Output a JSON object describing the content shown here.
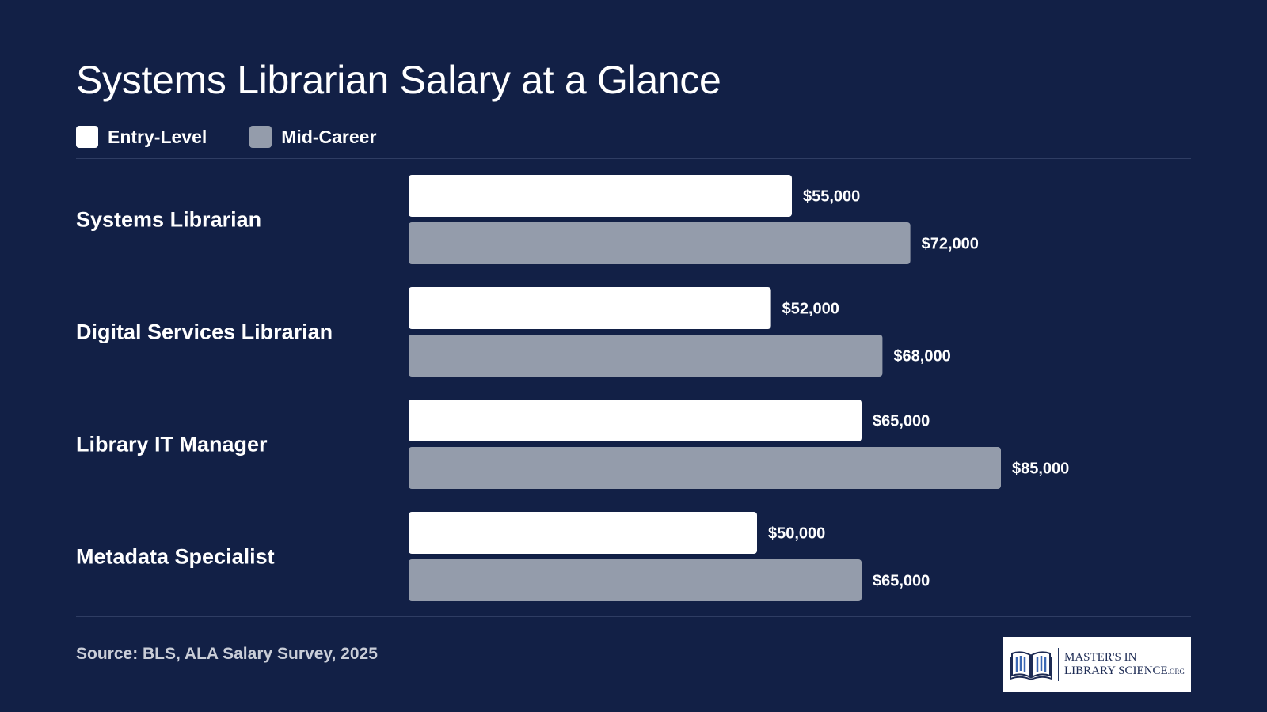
{
  "title": "Systems Librarian Salary at a Glance",
  "legend": [
    {
      "label": "Entry-Level",
      "color": "#ffffff"
    },
    {
      "label": "Mid-Career",
      "color": "#949cab"
    }
  ],
  "chart_data": {
    "type": "bar",
    "orientation": "horizontal",
    "title": "Systems Librarian Salary at a Glance",
    "categories": [
      "Systems Librarian",
      "Digital Services Librarian",
      "Library IT Manager",
      "Metadata Specialist"
    ],
    "series": [
      {
        "name": "Entry-Level",
        "color": "#ffffff",
        "values": [
          55000,
          52000,
          65000,
          50000
        ],
        "labels": [
          "$55,000",
          "$52,000",
          "$65,000",
          "$50,000"
        ]
      },
      {
        "name": "Mid-Career",
        "color": "#949cab",
        "values": [
          72000,
          68000,
          85000,
          65000
        ],
        "labels": [
          "$72,000",
          "$68,000",
          "$85,000",
          "$65,000"
        ]
      }
    ],
    "xlim": [
      0,
      100000
    ],
    "grid": false,
    "legend_position": "top-left"
  },
  "source": "Source: BLS, ALA Salary Survey, 2025",
  "logo": {
    "line1": "MASTER'S IN",
    "line2": "LIBRARY SCIENCE",
    "suffix": ".ORG",
    "icon": "open-book-icon"
  }
}
